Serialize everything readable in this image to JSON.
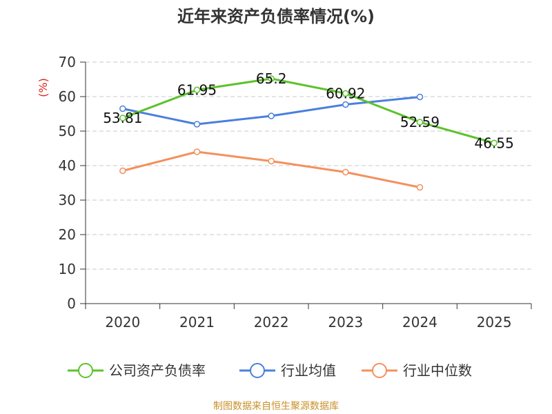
{
  "chart_data": {
    "type": "line",
    "title": "近年来资产负债率情况(%)",
    "ylabel": "(%)",
    "categories": [
      "2020",
      "2021",
      "2022",
      "2023",
      "2024",
      "2025"
    ],
    "ylim": [
      0,
      70
    ],
    "yticks": [
      0,
      10,
      20,
      30,
      40,
      50,
      60,
      70
    ],
    "grid": true,
    "legend_position": "bottom",
    "series": [
      {
        "name": "公司资产负债率",
        "color": "#5cc22c",
        "values": [
          53.81,
          61.95,
          65.2,
          60.92,
          52.59,
          46.55
        ],
        "labels": [
          "53.81",
          "61.95",
          "65.2",
          "60.92",
          "52.59",
          "46.55"
        ],
        "show_labels": true
      },
      {
        "name": "行业均值",
        "color": "#4a7fde",
        "values": [
          56.5,
          52.0,
          54.4,
          57.7,
          59.9,
          null
        ],
        "show_labels": false
      },
      {
        "name": "行业中位数",
        "color": "#f4905c",
        "values": [
          38.5,
          44.0,
          41.3,
          38.1,
          33.7,
          null
        ],
        "show_labels": false
      }
    ]
  },
  "source": "制图数据来自恒生聚源数据库"
}
